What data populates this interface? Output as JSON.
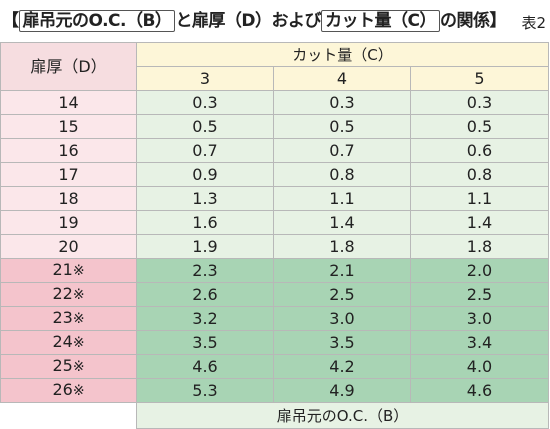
{
  "title": {
    "open_bracket": "【",
    "part1_boxed": "扉吊元のO.C.（B）",
    "part2": "と扉厚（D）および",
    "part3_boxed": "カット量（C）",
    "part4": "の関係",
    "close_bracket": "】",
    "table_no": "表2"
  },
  "table": {
    "row_header": "扉厚（D）",
    "col_group_header": "カット量（C）",
    "columns": [
      "3",
      "4",
      "5"
    ],
    "rows": [
      {
        "d": "14",
        "mark": "",
        "values": [
          "0.3",
          "0.3",
          "0.3"
        ],
        "highlight": false
      },
      {
        "d": "15",
        "mark": "",
        "values": [
          "0.5",
          "0.5",
          "0.5"
        ],
        "highlight": false
      },
      {
        "d": "16",
        "mark": "",
        "values": [
          "0.7",
          "0.7",
          "0.6"
        ],
        "highlight": false
      },
      {
        "d": "17",
        "mark": "",
        "values": [
          "0.9",
          "0.8",
          "0.8"
        ],
        "highlight": false
      },
      {
        "d": "18",
        "mark": "",
        "values": [
          "1.3",
          "1.1",
          "1.1"
        ],
        "highlight": false
      },
      {
        "d": "19",
        "mark": "",
        "values": [
          "1.6",
          "1.4",
          "1.4"
        ],
        "highlight": false
      },
      {
        "d": "20",
        "mark": "",
        "values": [
          "1.9",
          "1.8",
          "1.8"
        ],
        "highlight": false
      },
      {
        "d": "21",
        "mark": "※",
        "values": [
          "2.3",
          "2.1",
          "2.0"
        ],
        "highlight": true
      },
      {
        "d": "22",
        "mark": "※",
        "values": [
          "2.6",
          "2.5",
          "2.5"
        ],
        "highlight": true
      },
      {
        "d": "23",
        "mark": "※",
        "values": [
          "3.2",
          "3.0",
          "3.0"
        ],
        "highlight": true
      },
      {
        "d": "24",
        "mark": "※",
        "values": [
          "3.5",
          "3.5",
          "3.4"
        ],
        "highlight": true
      },
      {
        "d": "25",
        "mark": "※",
        "values": [
          "4.6",
          "4.2",
          "4.0"
        ],
        "highlight": true
      },
      {
        "d": "26",
        "mark": "※",
        "values": [
          "5.3",
          "4.9",
          "4.6"
        ],
        "highlight": true
      }
    ],
    "footer_label": "扉吊元のO.C.（B）"
  },
  "colors": {
    "header_pink": "#f6dde0",
    "header_yellow": "#fdf6d8",
    "row_pink_light": "#fbe7ea",
    "row_pink_dark": "#f4c4cc",
    "cell_green_light": "#e7f2e4",
    "cell_green_dark": "#a8d4b4"
  }
}
